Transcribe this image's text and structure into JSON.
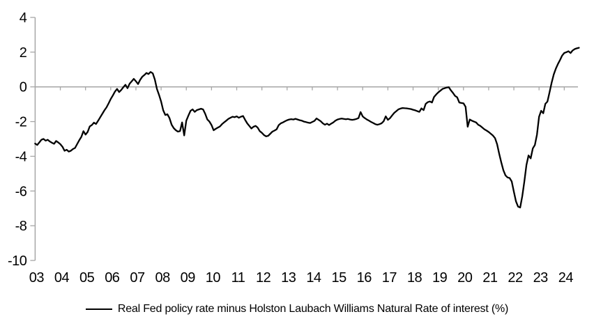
{
  "chart_data": {
    "type": "line",
    "title": "",
    "legend": "Real Fed policy rate minus Holston Laubach Williams Natural Rate of interest (%)",
    "legend_position": "bottom-center",
    "grid": "zero-line-only",
    "line_color": "#000000",
    "axis_color": "#a6a6a6",
    "text_color": "#000000",
    "ylim": [
      -10,
      4
    ],
    "xlim_years": [
      2003,
      2024.6
    ],
    "y_tick_values": [
      4,
      2,
      0,
      -2,
      -4,
      -6,
      -8,
      -10
    ],
    "y_tick_labels": [
      "4",
      "2",
      "0",
      "-2",
      "-4",
      "-6",
      "-8",
      "-10"
    ],
    "x_tick_labels": [
      "03",
      "04",
      "05",
      "06",
      "07",
      "08",
      "09",
      "10",
      "11",
      "12",
      "13",
      "14",
      "15",
      "16",
      "17",
      "18",
      "19",
      "20",
      "21",
      "22",
      "23",
      "24"
    ],
    "x_first_year": 2003,
    "series": [
      {
        "name": "Real Fed policy rate minus Holston Laubach Williams Natural Rate of interest (%)",
        "monthly_by_year": {
          "2003": [
            -3.27,
            -3.35,
            -3.2,
            -3.05,
            -3.0,
            -3.1,
            -3.05,
            -3.15,
            -3.22,
            -3.28,
            -3.12,
            -3.2
          ],
          "2004": [
            -3.3,
            -3.45,
            -3.68,
            -3.62,
            -3.73,
            -3.68,
            -3.58,
            -3.52,
            -3.3,
            -3.08,
            -2.88,
            -2.55
          ],
          "2005": [
            -2.75,
            -2.6,
            -2.28,
            -2.2,
            -2.06,
            -2.14,
            -1.95,
            -1.75,
            -1.55,
            -1.35,
            -1.18,
            -0.95
          ],
          "2006": [
            -0.7,
            -0.5,
            -0.28,
            -0.12,
            -0.3,
            -0.18,
            -0.02,
            0.12,
            -0.08,
            0.18,
            0.32,
            0.46
          ],
          "2007": [
            0.32,
            0.16,
            0.4,
            0.58,
            0.68,
            0.8,
            0.74,
            0.86,
            0.78,
            0.42,
            -0.12,
            -0.46
          ],
          "2008": [
            -0.85,
            -1.35,
            -1.62,
            -1.58,
            -1.8,
            -2.18,
            -2.38,
            -2.5,
            -2.58,
            -2.55,
            -2.05,
            -2.8
          ],
          "2009": [
            -1.95,
            -1.65,
            -1.38,
            -1.3,
            -1.44,
            -1.34,
            -1.3,
            -1.26,
            -1.3,
            -1.55,
            -1.88,
            -2.0
          ],
          "2010": [
            -2.2,
            -2.5,
            -2.42,
            -2.35,
            -2.28,
            -2.15,
            -2.05,
            -1.95,
            -1.85,
            -1.78,
            -1.72,
            -1.75
          ],
          "2011": [
            -1.7,
            -1.78,
            -1.72,
            -1.68,
            -1.9,
            -2.1,
            -2.25,
            -2.4,
            -2.3,
            -2.25,
            -2.35,
            -2.55
          ],
          "2012": [
            -2.65,
            -2.78,
            -2.85,
            -2.82,
            -2.7,
            -2.58,
            -2.52,
            -2.45,
            -2.2,
            -2.1,
            -2.05,
            -1.98
          ],
          "2013": [
            -1.92,
            -1.88,
            -1.86,
            -1.88,
            -1.84,
            -1.88,
            -1.92,
            -1.95,
            -2.0,
            -2.03,
            -2.06,
            -2.08
          ],
          "2014": [
            -2.02,
            -1.96,
            -1.82,
            -1.9,
            -1.98,
            -2.1,
            -2.18,
            -2.12,
            -2.2,
            -2.12,
            -2.05,
            -1.95
          ],
          "2015": [
            -1.88,
            -1.85,
            -1.83,
            -1.85,
            -1.87,
            -1.85,
            -1.88,
            -1.9,
            -1.88,
            -1.85,
            -1.8,
            -1.45
          ],
          "2016": [
            -1.7,
            -1.8,
            -1.88,
            -1.95,
            -2.02,
            -2.08,
            -2.15,
            -2.18,
            -2.15,
            -2.1,
            -1.98,
            -1.7
          ],
          "2017": [
            -1.9,
            -1.8,
            -1.65,
            -1.5,
            -1.4,
            -1.3,
            -1.25,
            -1.22,
            -1.23,
            -1.24,
            -1.26,
            -1.28
          ],
          "2018": [
            -1.32,
            -1.35,
            -1.4,
            -1.44,
            -1.24,
            -1.34,
            -0.98,
            -0.88,
            -0.84,
            -0.9,
            -0.58,
            -0.44
          ],
          "2019": [
            -0.32,
            -0.22,
            -0.12,
            -0.08,
            -0.04,
            -0.02,
            -0.2,
            -0.35,
            -0.52,
            -0.6,
            -0.9,
            -0.93
          ],
          "2020": [
            -0.95,
            -1.15,
            -2.3,
            -1.88,
            -1.95,
            -2.0,
            -2.05,
            -2.18,
            -2.25,
            -2.35,
            -2.45,
            -2.52
          ],
          "2021": [
            -2.6,
            -2.7,
            -2.8,
            -2.95,
            -3.3,
            -3.85,
            -4.35,
            -4.8,
            -5.1,
            -5.22,
            -5.25,
            -5.45
          ],
          "2022": [
            -6.05,
            -6.6,
            -6.9,
            -6.95,
            -6.3,
            -5.45,
            -4.5,
            -3.95,
            -4.12,
            -3.55,
            -3.35,
            -2.75
          ],
          "2023": [
            -1.72,
            -1.38,
            -1.52,
            -0.98,
            -0.85,
            -0.3,
            0.25,
            0.72,
            1.05,
            1.32,
            1.55,
            1.8
          ],
          "2024": [
            1.95,
            2.0,
            2.05,
            1.95,
            2.1,
            2.18,
            2.22,
            2.25
          ]
        }
      }
    ]
  }
}
